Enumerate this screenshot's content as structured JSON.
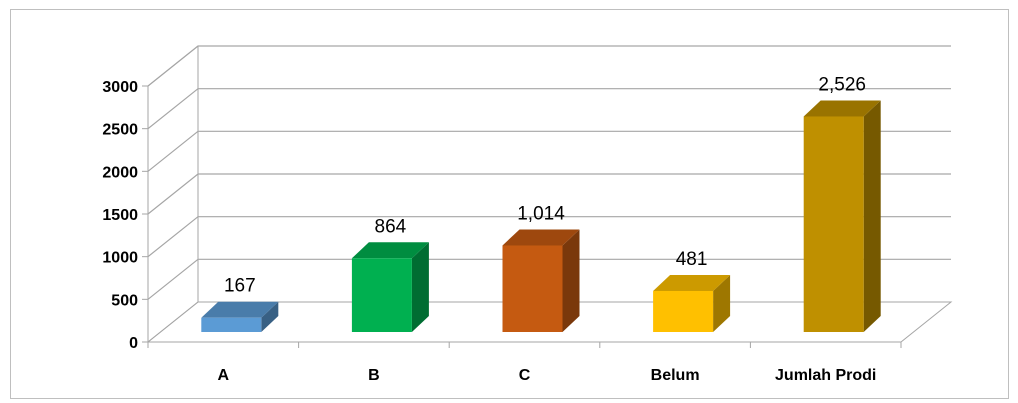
{
  "chart_data": {
    "type": "bar",
    "style": "3d-column",
    "categories": [
      "A",
      "B",
      "C",
      "Belum",
      "Jumlah Prodi"
    ],
    "values": [
      167,
      864,
      1014,
      481,
      2526
    ],
    "data_labels": [
      "167",
      "864",
      "1,014",
      "481",
      "2,526"
    ],
    "y_ticks": [
      "0",
      "500",
      "1000",
      "1500",
      "2000",
      "2500",
      "3000"
    ],
    "ylim": [
      0,
      3000
    ],
    "grid": true,
    "legend": "none",
    "colors": {
      "bars": [
        "#5b9bd5",
        "#00b050",
        "#c55a11",
        "#ffc000",
        "#bf9000"
      ],
      "gridline": "#a6a6a6"
    }
  }
}
